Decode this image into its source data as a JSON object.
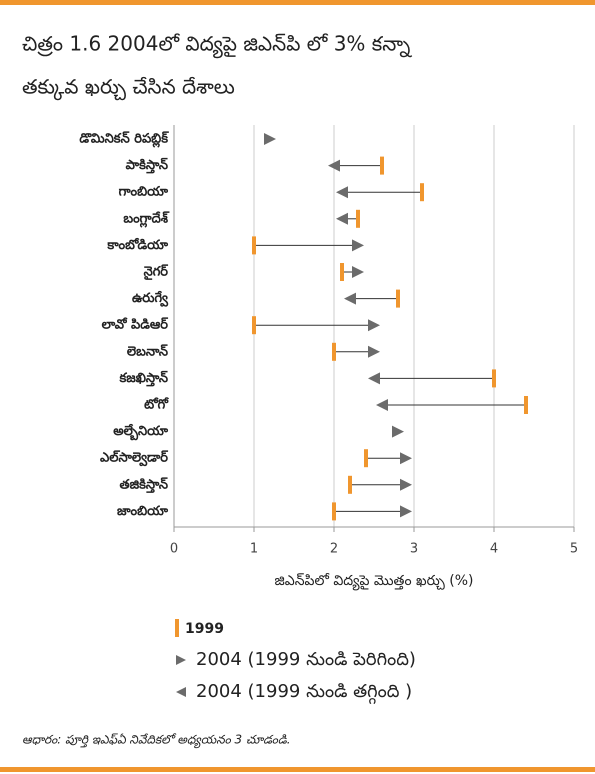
{
  "chart_data": {
    "type": "arrow-dumbbell",
    "title": [
      "చిత్రం 1.6 2004లో విద్యపై జిఎన్‌పి లో 3% కన్నా",
      "తక్కువ ఖర్చు చేసిన దేశాలు"
    ],
    "categories": [
      "డొమినికన్ రిపబ్లిక్",
      "పాకిస్తాన్",
      "గాంబియా",
      "బంగ్లాదేశ్",
      "కాంబోడియా",
      "నైగర్",
      "ఉరుగ్వే",
      "లావో పిడిఆర్",
      "లెబనాన్",
      "కజఖిస్తాన్",
      "టోగో",
      "అల్బేనియా",
      "ఎల్‌సాల్వెడార్",
      "తజికిస్తాన్",
      "జాంబియా"
    ],
    "series": [
      {
        "name": "1999",
        "color": "#f0962e",
        "values": [
          null,
          2.6,
          3.1,
          2.3,
          1.0,
          2.1,
          2.8,
          1.0,
          2.0,
          4.0,
          4.4,
          null,
          2.4,
          2.2,
          2.0
        ]
      },
      {
        "name": "2004",
        "color": "#6b6b6b",
        "values": [
          1.2,
          2.0,
          2.1,
          2.1,
          2.3,
          2.3,
          2.2,
          2.5,
          2.5,
          2.5,
          2.6,
          2.8,
          2.9,
          2.9,
          2.9
        ]
      }
    ],
    "legend": [
      "2004 (1999 నుండి పెరిగింది)",
      "2004 (1999 నుండి తగ్గింది )"
    ],
    "xlabel": "జిఎన్‌పిలో విద్యపై మొత్తం ఖర్చు (%)",
    "xlim": [
      0,
      5
    ],
    "xticks": [
      0,
      1,
      2,
      3,
      4,
      5
    ],
    "grid": true,
    "source": "ఆధారం: పూర్తి ఇఎఫ్ఏ నివేదికలో అధ్యయనం 3 చూడండి."
  }
}
